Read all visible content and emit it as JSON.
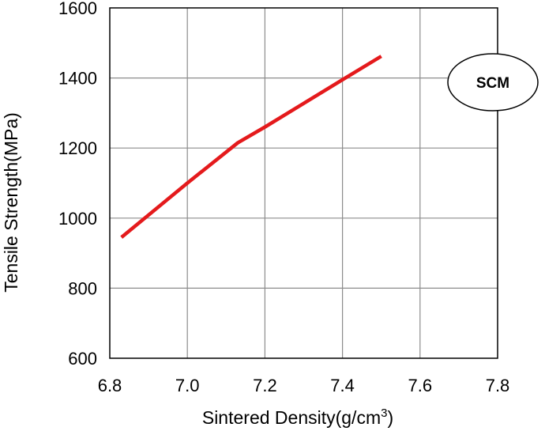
{
  "chart_data": {
    "type": "line",
    "title": "",
    "xlabel": "Sintered Density(g/cm",
    "xlabel_sup": "3",
    "xlabel_close": ")",
    "ylabel": "Tensile Strength(MPa)",
    "xlim": [
      6.8,
      7.8
    ],
    "ylim": [
      600,
      1600
    ],
    "x_ticks": [
      "6.8",
      "7.0",
      "7.2",
      "7.4",
      "7.6",
      "7.8"
    ],
    "y_ticks": [
      "600",
      "800",
      "1000",
      "1200",
      "1400",
      "1600"
    ],
    "grid": true,
    "series": [
      {
        "name": "SCM",
        "color": "#e41a1c",
        "x": [
          6.83,
          7.0,
          7.13,
          7.2,
          7.4,
          7.5
        ],
        "y": [
          945,
          1100,
          1215,
          1260,
          1395,
          1462
        ]
      }
    ],
    "annotation": "SCM"
  }
}
